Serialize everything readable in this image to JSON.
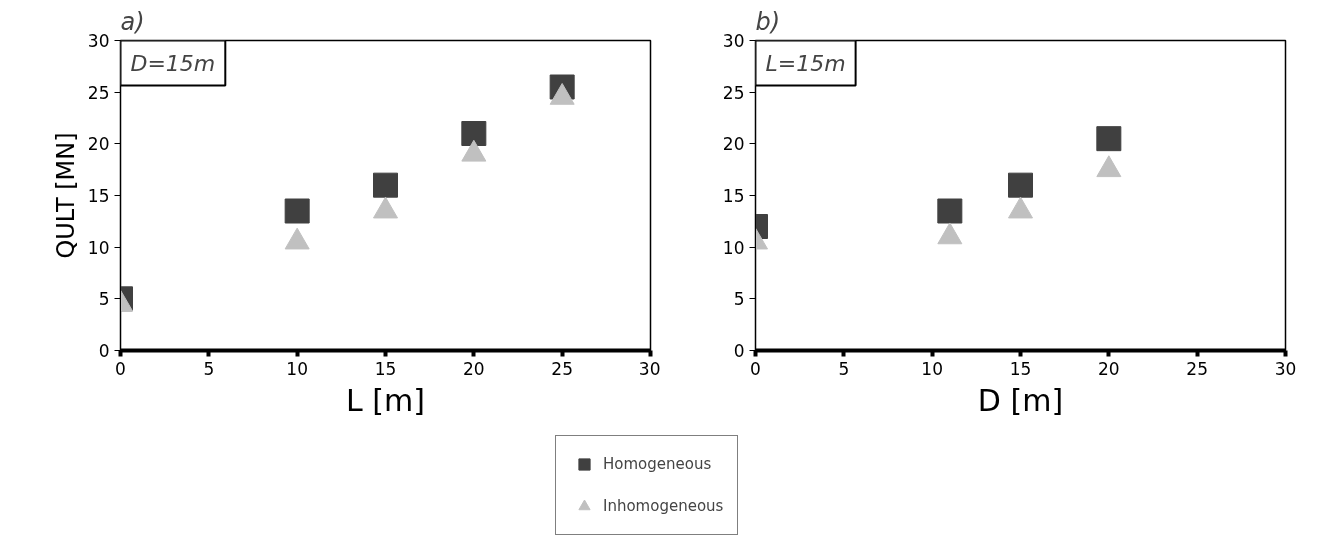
{
  "chart_data": [
    {
      "type": "scatter",
      "title": "a)",
      "xlabel": "L [m]",
      "ylabel": "QULT [MN]",
      "annotations": [
        "D=15m"
      ],
      "x": [
        0,
        10,
        15,
        20,
        25
      ],
      "xlim": [
        0,
        30
      ],
      "xticks": [
        0,
        5,
        10,
        15,
        20,
        25,
        30
      ],
      "ylim": [
        0,
        30
      ],
      "yticks": [
        0,
        5,
        10,
        15,
        20,
        25,
        30
      ],
      "grid": false,
      "legend": "bottom right",
      "series": [
        {
          "name": "Homogeneous",
          "color": "#404040",
          "marker": "square",
          "values": [
            5,
            13.5,
            16,
            21,
            25.5
          ]
        },
        {
          "name": "Inhomogeneous",
          "color": "#c0c0c0",
          "marker": "triangle",
          "values": [
            4.5,
            10.5,
            13.5,
            19,
            24.5
          ]
        }
      ]
    },
    {
      "type": "scatter",
      "title": "b)",
      "xlabel": "D [m]",
      "annotations": [
        "L=15m"
      ],
      "x": [
        0,
        11,
        15,
        20
      ],
      "xlim": [
        0,
        30
      ],
      "xticks": [
        0,
        5,
        10,
        15,
        20,
        25,
        30
      ],
      "ylim": [
        0,
        30
      ],
      "yticks": [
        0,
        5,
        10,
        15,
        20,
        25,
        30
      ],
      "grid": false,
      "series": [
        {
          "color": "#404040",
          "marker": "square",
          "values": [
            12,
            13.5,
            16,
            20.5
          ]
        },
        {
          "color": "#c0c0c0",
          "marker": "triangle",
          "values": [
            10.5,
            11,
            13.5,
            17.5
          ]
        }
      ]
    }
  ]
}
